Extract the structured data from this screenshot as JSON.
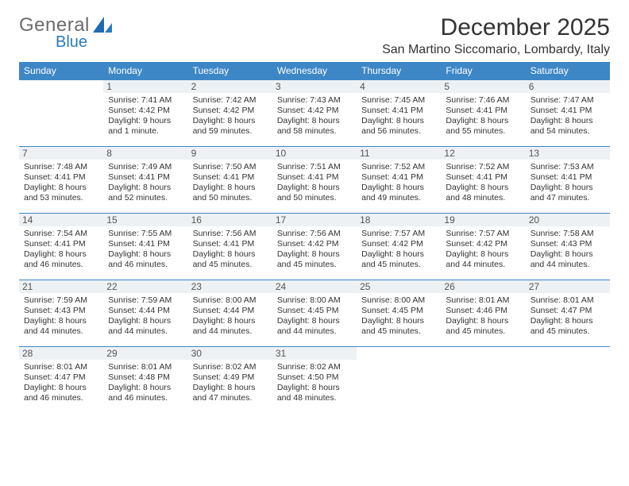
{
  "brand": {
    "part1": "General",
    "part2": "Blue"
  },
  "title": "December 2025",
  "location": "San Martino Siccomario, Lombardy, Italy",
  "colors": {
    "header_bg": "#3d87c7",
    "header_text": "#ffffff",
    "daynum_bg": "#eef1f3",
    "rule": "#3d87c7",
    "brand_blue": "#2b7bbf",
    "text": "#333333",
    "background": "#ffffff"
  },
  "weekdays": [
    "Sunday",
    "Monday",
    "Tuesday",
    "Wednesday",
    "Thursday",
    "Friday",
    "Saturday"
  ],
  "weeks": [
    [
      null,
      {
        "n": "1",
        "sunrise": "Sunrise: 7:41 AM",
        "sunset": "Sunset: 4:42 PM",
        "day1": "Daylight: 9 hours",
        "day2": "and 1 minute."
      },
      {
        "n": "2",
        "sunrise": "Sunrise: 7:42 AM",
        "sunset": "Sunset: 4:42 PM",
        "day1": "Daylight: 8 hours",
        "day2": "and 59 minutes."
      },
      {
        "n": "3",
        "sunrise": "Sunrise: 7:43 AM",
        "sunset": "Sunset: 4:42 PM",
        "day1": "Daylight: 8 hours",
        "day2": "and 58 minutes."
      },
      {
        "n": "4",
        "sunrise": "Sunrise: 7:45 AM",
        "sunset": "Sunset: 4:41 PM",
        "day1": "Daylight: 8 hours",
        "day2": "and 56 minutes."
      },
      {
        "n": "5",
        "sunrise": "Sunrise: 7:46 AM",
        "sunset": "Sunset: 4:41 PM",
        "day1": "Daylight: 8 hours",
        "day2": "and 55 minutes."
      },
      {
        "n": "6",
        "sunrise": "Sunrise: 7:47 AM",
        "sunset": "Sunset: 4:41 PM",
        "day1": "Daylight: 8 hours",
        "day2": "and 54 minutes."
      }
    ],
    [
      {
        "n": "7",
        "sunrise": "Sunrise: 7:48 AM",
        "sunset": "Sunset: 4:41 PM",
        "day1": "Daylight: 8 hours",
        "day2": "and 53 minutes."
      },
      {
        "n": "8",
        "sunrise": "Sunrise: 7:49 AM",
        "sunset": "Sunset: 4:41 PM",
        "day1": "Daylight: 8 hours",
        "day2": "and 52 minutes."
      },
      {
        "n": "9",
        "sunrise": "Sunrise: 7:50 AM",
        "sunset": "Sunset: 4:41 PM",
        "day1": "Daylight: 8 hours",
        "day2": "and 50 minutes."
      },
      {
        "n": "10",
        "sunrise": "Sunrise: 7:51 AM",
        "sunset": "Sunset: 4:41 PM",
        "day1": "Daylight: 8 hours",
        "day2": "and 50 minutes."
      },
      {
        "n": "11",
        "sunrise": "Sunrise: 7:52 AM",
        "sunset": "Sunset: 4:41 PM",
        "day1": "Daylight: 8 hours",
        "day2": "and 49 minutes."
      },
      {
        "n": "12",
        "sunrise": "Sunrise: 7:52 AM",
        "sunset": "Sunset: 4:41 PM",
        "day1": "Daylight: 8 hours",
        "day2": "and 48 minutes."
      },
      {
        "n": "13",
        "sunrise": "Sunrise: 7:53 AM",
        "sunset": "Sunset: 4:41 PM",
        "day1": "Daylight: 8 hours",
        "day2": "and 47 minutes."
      }
    ],
    [
      {
        "n": "14",
        "sunrise": "Sunrise: 7:54 AM",
        "sunset": "Sunset: 4:41 PM",
        "day1": "Daylight: 8 hours",
        "day2": "and 46 minutes."
      },
      {
        "n": "15",
        "sunrise": "Sunrise: 7:55 AM",
        "sunset": "Sunset: 4:41 PM",
        "day1": "Daylight: 8 hours",
        "day2": "and 46 minutes."
      },
      {
        "n": "16",
        "sunrise": "Sunrise: 7:56 AM",
        "sunset": "Sunset: 4:41 PM",
        "day1": "Daylight: 8 hours",
        "day2": "and 45 minutes."
      },
      {
        "n": "17",
        "sunrise": "Sunrise: 7:56 AM",
        "sunset": "Sunset: 4:42 PM",
        "day1": "Daylight: 8 hours",
        "day2": "and 45 minutes."
      },
      {
        "n": "18",
        "sunrise": "Sunrise: 7:57 AM",
        "sunset": "Sunset: 4:42 PM",
        "day1": "Daylight: 8 hours",
        "day2": "and 45 minutes."
      },
      {
        "n": "19",
        "sunrise": "Sunrise: 7:57 AM",
        "sunset": "Sunset: 4:42 PM",
        "day1": "Daylight: 8 hours",
        "day2": "and 44 minutes."
      },
      {
        "n": "20",
        "sunrise": "Sunrise: 7:58 AM",
        "sunset": "Sunset: 4:43 PM",
        "day1": "Daylight: 8 hours",
        "day2": "and 44 minutes."
      }
    ],
    [
      {
        "n": "21",
        "sunrise": "Sunrise: 7:59 AM",
        "sunset": "Sunset: 4:43 PM",
        "day1": "Daylight: 8 hours",
        "day2": "and 44 minutes."
      },
      {
        "n": "22",
        "sunrise": "Sunrise: 7:59 AM",
        "sunset": "Sunset: 4:44 PM",
        "day1": "Daylight: 8 hours",
        "day2": "and 44 minutes."
      },
      {
        "n": "23",
        "sunrise": "Sunrise: 8:00 AM",
        "sunset": "Sunset: 4:44 PM",
        "day1": "Daylight: 8 hours",
        "day2": "and 44 minutes."
      },
      {
        "n": "24",
        "sunrise": "Sunrise: 8:00 AM",
        "sunset": "Sunset: 4:45 PM",
        "day1": "Daylight: 8 hours",
        "day2": "and 44 minutes."
      },
      {
        "n": "25",
        "sunrise": "Sunrise: 8:00 AM",
        "sunset": "Sunset: 4:45 PM",
        "day1": "Daylight: 8 hours",
        "day2": "and 45 minutes."
      },
      {
        "n": "26",
        "sunrise": "Sunrise: 8:01 AM",
        "sunset": "Sunset: 4:46 PM",
        "day1": "Daylight: 8 hours",
        "day2": "and 45 minutes."
      },
      {
        "n": "27",
        "sunrise": "Sunrise: 8:01 AM",
        "sunset": "Sunset: 4:47 PM",
        "day1": "Daylight: 8 hours",
        "day2": "and 45 minutes."
      }
    ],
    [
      {
        "n": "28",
        "sunrise": "Sunrise: 8:01 AM",
        "sunset": "Sunset: 4:47 PM",
        "day1": "Daylight: 8 hours",
        "day2": "and 46 minutes."
      },
      {
        "n": "29",
        "sunrise": "Sunrise: 8:01 AM",
        "sunset": "Sunset: 4:48 PM",
        "day1": "Daylight: 8 hours",
        "day2": "and 46 minutes."
      },
      {
        "n": "30",
        "sunrise": "Sunrise: 8:02 AM",
        "sunset": "Sunset: 4:49 PM",
        "day1": "Daylight: 8 hours",
        "day2": "and 47 minutes."
      },
      {
        "n": "31",
        "sunrise": "Sunrise: 8:02 AM",
        "sunset": "Sunset: 4:50 PM",
        "day1": "Daylight: 8 hours",
        "day2": "and 48 minutes."
      },
      null,
      null,
      null
    ]
  ]
}
